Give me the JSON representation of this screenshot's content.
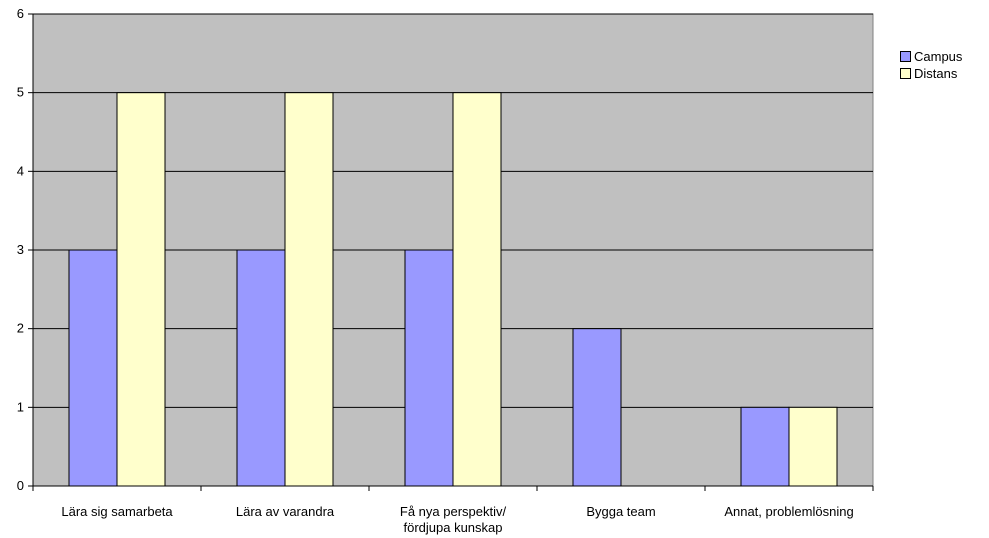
{
  "chart_data": {
    "type": "bar",
    "categories": [
      [
        "Lära sig samarbeta"
      ],
      [
        "Lära av varandra"
      ],
      [
        "Få nya perspektiv/",
        "fördjupa kunskap"
      ],
      [
        "Bygga team"
      ],
      [
        "Annat, problemlösning"
      ]
    ],
    "series": [
      {
        "name": "Campus",
        "color": "#9999ff",
        "values": [
          3,
          3,
          3,
          2,
          1
        ]
      },
      {
        "name": "Distans",
        "color": "#ffffcc",
        "values": [
          5,
          5,
          5,
          0,
          1
        ]
      }
    ],
    "ylim": [
      0,
      6
    ],
    "yticks": [
      "0",
      "1",
      "2",
      "3",
      "4",
      "5",
      "6"
    ],
    "grid": true,
    "plot_background": "#c0c0c0",
    "legend_position": "right"
  }
}
